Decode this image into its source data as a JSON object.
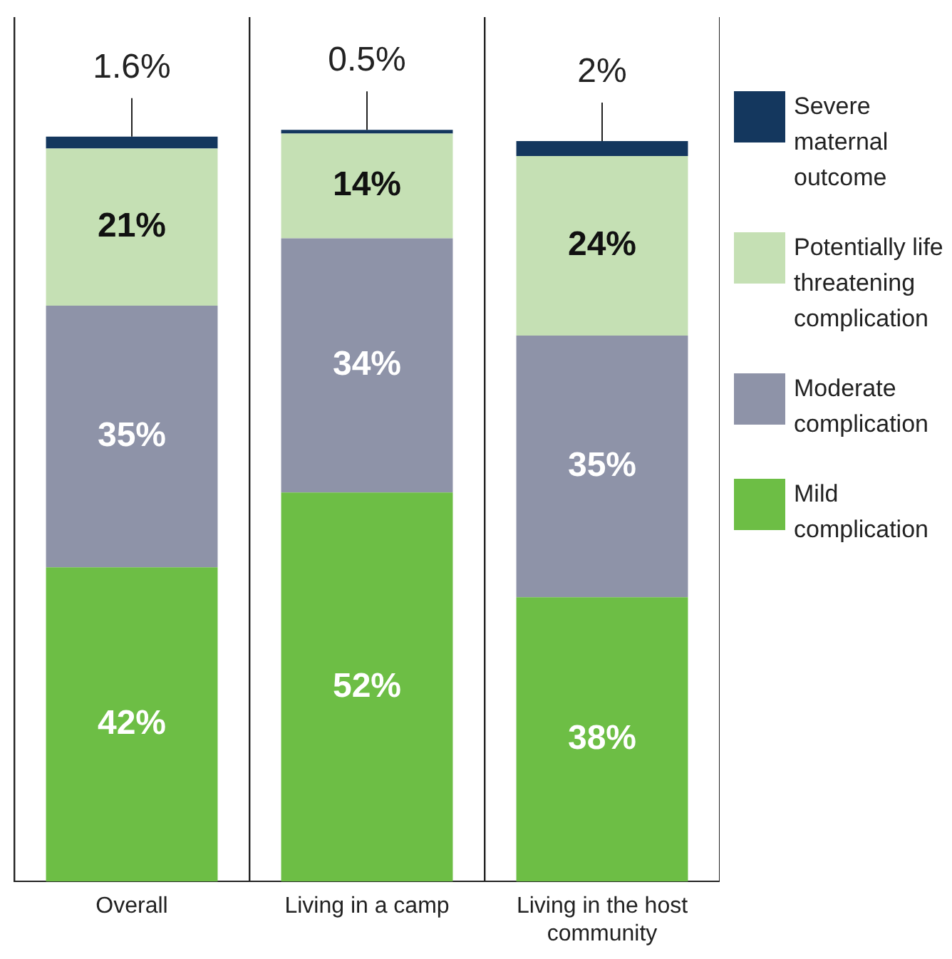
{
  "chart_data": {
    "type": "bar",
    "stacked": true,
    "categories": [
      "Overall",
      "Living in a camp",
      "Living in the host community"
    ],
    "series": [
      {
        "name": "Mild complication",
        "color": "#6dbe45",
        "values": [
          42,
          52,
          38
        ],
        "value_labels": [
          "42%",
          "52%",
          "38%"
        ]
      },
      {
        "name": "Moderate complication",
        "color": "#8e93a8",
        "values": [
          35,
          34,
          35
        ],
        "value_labels": [
          "35%",
          "34%",
          "35%"
        ]
      },
      {
        "name": "Potentially life threatening complication",
        "color": "#c5e0b4",
        "values": [
          21,
          14,
          24
        ],
        "value_labels": [
          "21%",
          "14%",
          "24%"
        ]
      },
      {
        "name": "Severe maternal outcome",
        "color": "#14375e",
        "values": [
          1.6,
          0.5,
          2
        ],
        "value_labels": [
          "1.6%",
          "0.5%",
          "2%"
        ]
      }
    ],
    "grid": "x",
    "legend": "right"
  }
}
